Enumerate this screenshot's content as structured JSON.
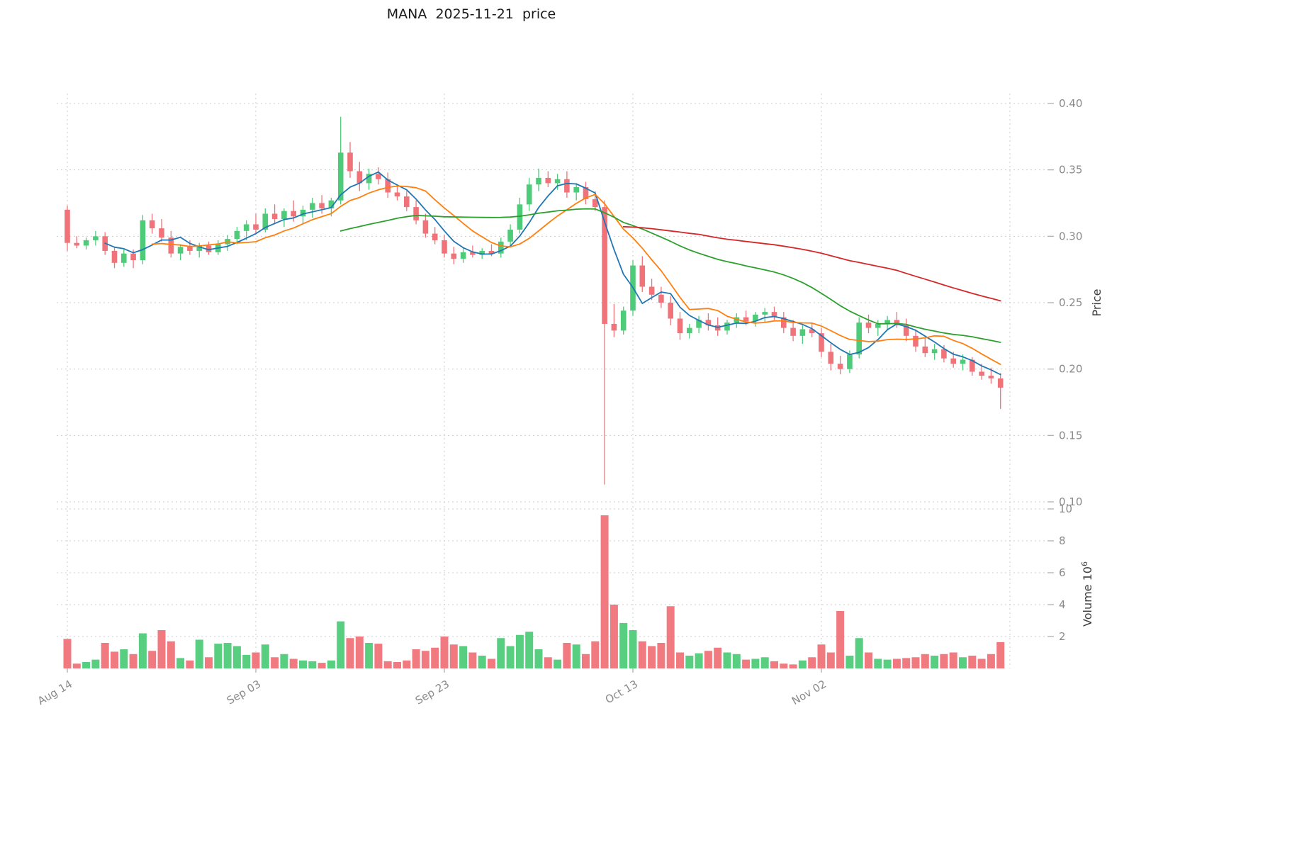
{
  "title": "MANA  2025-11-21  price",
  "axes": {
    "price_label": "Price",
    "volume_label": "Volume",
    "volume_unit_base": "10",
    "volume_unit_exp": "6"
  },
  "chart_data": {
    "type": "candlestick",
    "symbol": "MANA",
    "as_of_date_in_title": "2025-11-21",
    "grid": true,
    "x_tick_labels": [
      "Aug 14",
      "Sep 03",
      "Sep 23",
      "Oct 13",
      "Nov 02"
    ],
    "x_tick_indices": [
      0,
      20,
      40,
      60,
      80
    ],
    "price_ticks": [
      0.4,
      0.35,
      0.3,
      0.25,
      0.2,
      0.15,
      0.1
    ],
    "volume_ticks": [
      10,
      8,
      6,
      4,
      2
    ],
    "price_axis_range": [
      0.1,
      0.4
    ],
    "volume_axis_range": [
      0,
      10
    ],
    "volume_unit": 1000000,
    "moving_average_windows": [
      5,
      10,
      30,
      60
    ],
    "colors": {
      "up": "#4ecb79",
      "down": "#f0737a",
      "ma": [
        "#1f77b4",
        "#ff7f0e",
        "#2ca02c",
        "#d62728"
      ],
      "grid": "#cccccc",
      "tick_text": "#8a8a8a",
      "axis_label_text": "#3c3c3c"
    },
    "fields": [
      "open",
      "high",
      "low",
      "close",
      "volume_millions"
    ],
    "dates": [
      "2025-08-14",
      "2025-08-15",
      "2025-08-16",
      "2025-08-17",
      "2025-08-18",
      "2025-08-19",
      "2025-08-20",
      "2025-08-21",
      "2025-08-22",
      "2025-08-23",
      "2025-08-24",
      "2025-08-25",
      "2025-08-26",
      "2025-08-27",
      "2025-08-28",
      "2025-08-29",
      "2025-08-30",
      "2025-08-31",
      "2025-09-01",
      "2025-09-02",
      "2025-09-03",
      "2025-09-04",
      "2025-09-05",
      "2025-09-06",
      "2025-09-07",
      "2025-09-08",
      "2025-09-09",
      "2025-09-10",
      "2025-09-11",
      "2025-09-12",
      "2025-09-13",
      "2025-09-14",
      "2025-09-15",
      "2025-09-16",
      "2025-09-17",
      "2025-09-18",
      "2025-09-19",
      "2025-09-20",
      "2025-09-21",
      "2025-09-22",
      "2025-09-23",
      "2025-09-24",
      "2025-09-25",
      "2025-09-26",
      "2025-09-27",
      "2025-09-28",
      "2025-09-29",
      "2025-09-30",
      "2025-10-01",
      "2025-10-02",
      "2025-10-03",
      "2025-10-04",
      "2025-10-05",
      "2025-10-06",
      "2025-10-07",
      "2025-10-08",
      "2025-10-09",
      "2025-10-10",
      "2025-10-11",
      "2025-10-12",
      "2025-10-13",
      "2025-10-14",
      "2025-10-15",
      "2025-10-16",
      "2025-10-17",
      "2025-10-18",
      "2025-10-19",
      "2025-10-20",
      "2025-10-21",
      "2025-10-22",
      "2025-10-23",
      "2025-10-24",
      "2025-10-25",
      "2025-10-26",
      "2025-10-27",
      "2025-10-28",
      "2025-10-29",
      "2025-10-30",
      "2025-10-31",
      "2025-11-01",
      "2025-11-02",
      "2025-11-03",
      "2025-11-04",
      "2025-11-05",
      "2025-11-06",
      "2025-11-07",
      "2025-11-08",
      "2025-11-09",
      "2025-11-10",
      "2025-11-11",
      "2025-11-12",
      "2025-11-13",
      "2025-11-14",
      "2025-11-15",
      "2025-11-16",
      "2025-11-17",
      "2025-11-18",
      "2025-11-19",
      "2025-11-20",
      "2025-11-21"
    ],
    "candles": [
      [
        0.32,
        0.323,
        0.289,
        0.295,
        1.85
      ],
      [
        0.295,
        0.3,
        0.291,
        0.293,
        0.3
      ],
      [
        0.293,
        0.299,
        0.29,
        0.297,
        0.4
      ],
      [
        0.297,
        0.304,
        0.293,
        0.3,
        0.55
      ],
      [
        0.3,
        0.303,
        0.286,
        0.289,
        1.6
      ],
      [
        0.289,
        0.292,
        0.276,
        0.28,
        1.05
      ],
      [
        0.28,
        0.29,
        0.277,
        0.287,
        1.2
      ],
      [
        0.287,
        0.29,
        0.276,
        0.282,
        0.9
      ],
      [
        0.282,
        0.316,
        0.279,
        0.312,
        2.2
      ],
      [
        0.312,
        0.317,
        0.302,
        0.306,
        1.1
      ],
      [
        0.306,
        0.313,
        0.296,
        0.299,
        2.4
      ],
      [
        0.299,
        0.304,
        0.284,
        0.287,
        1.7
      ],
      [
        0.287,
        0.294,
        0.282,
        0.292,
        0.65
      ],
      [
        0.292,
        0.297,
        0.286,
        0.289,
        0.5
      ],
      [
        0.289,
        0.295,
        0.284,
        0.293,
        1.8
      ],
      [
        0.293,
        0.296,
        0.286,
        0.288,
        0.7
      ],
      [
        0.288,
        0.297,
        0.286,
        0.294,
        1.55
      ],
      [
        0.294,
        0.301,
        0.289,
        0.298,
        1.6
      ],
      [
        0.298,
        0.307,
        0.294,
        0.304,
        1.4
      ],
      [
        0.304,
        0.312,
        0.297,
        0.309,
        0.85
      ],
      [
        0.309,
        0.317,
        0.302,
        0.305,
        1.0
      ],
      [
        0.305,
        0.321,
        0.303,
        0.317,
        1.5
      ],
      [
        0.317,
        0.324,
        0.309,
        0.313,
        0.7
      ],
      [
        0.313,
        0.321,
        0.307,
        0.319,
        0.9
      ],
      [
        0.319,
        0.327,
        0.311,
        0.315,
        0.6
      ],
      [
        0.315,
        0.323,
        0.309,
        0.32,
        0.5
      ],
      [
        0.32,
        0.329,
        0.314,
        0.325,
        0.45
      ],
      [
        0.325,
        0.331,
        0.317,
        0.321,
        0.35
      ],
      [
        0.321,
        0.329,
        0.315,
        0.327,
        0.5
      ],
      [
        0.327,
        0.39,
        0.324,
        0.363,
        2.95
      ],
      [
        0.363,
        0.371,
        0.344,
        0.349,
        1.9
      ],
      [
        0.349,
        0.356,
        0.334,
        0.34,
        2.0
      ],
      [
        0.34,
        0.351,
        0.335,
        0.347,
        1.6
      ],
      [
        0.347,
        0.352,
        0.339,
        0.343,
        1.55
      ],
      [
        0.343,
        0.348,
        0.329,
        0.333,
        0.45
      ],
      [
        0.333,
        0.338,
        0.327,
        0.33,
        0.4
      ],
      [
        0.33,
        0.334,
        0.319,
        0.322,
        0.5
      ],
      [
        0.322,
        0.327,
        0.309,
        0.312,
        1.2
      ],
      [
        0.312,
        0.317,
        0.299,
        0.302,
        1.1
      ],
      [
        0.302,
        0.307,
        0.294,
        0.297,
        1.3
      ],
      [
        0.297,
        0.301,
        0.284,
        0.287,
        2.0
      ],
      [
        0.287,
        0.292,
        0.279,
        0.283,
        1.5
      ],
      [
        0.283,
        0.291,
        0.28,
        0.288,
        1.4
      ],
      [
        0.288,
        0.293,
        0.284,
        0.286,
        1.0
      ],
      [
        0.286,
        0.291,
        0.283,
        0.289,
        0.8
      ],
      [
        0.289,
        0.294,
        0.285,
        0.287,
        0.6
      ],
      [
        0.287,
        0.299,
        0.284,
        0.296,
        1.9
      ],
      [
        0.296,
        0.309,
        0.292,
        0.305,
        1.4
      ],
      [
        0.305,
        0.329,
        0.302,
        0.324,
        2.1
      ],
      [
        0.324,
        0.344,
        0.319,
        0.339,
        2.3
      ],
      [
        0.339,
        0.351,
        0.334,
        0.344,
        1.2
      ],
      [
        0.344,
        0.349,
        0.337,
        0.34,
        0.7
      ],
      [
        0.34,
        0.347,
        0.335,
        0.343,
        0.55
      ],
      [
        0.343,
        0.349,
        0.329,
        0.333,
        1.6
      ],
      [
        0.333,
        0.34,
        0.327,
        0.337,
        1.5
      ],
      [
        0.337,
        0.341,
        0.324,
        0.328,
        0.9
      ],
      [
        0.328,
        0.334,
        0.319,
        0.322,
        1.7
      ],
      [
        0.322,
        0.327,
        0.113,
        0.234,
        9.6
      ],
      [
        0.234,
        0.249,
        0.224,
        0.229,
        4.0
      ],
      [
        0.229,
        0.247,
        0.226,
        0.244,
        2.85
      ],
      [
        0.244,
        0.282,
        0.24,
        0.278,
        2.4
      ],
      [
        0.278,
        0.285,
        0.258,
        0.262,
        1.7
      ],
      [
        0.262,
        0.268,
        0.252,
        0.256,
        1.4
      ],
      [
        0.256,
        0.262,
        0.246,
        0.25,
        1.6
      ],
      [
        0.25,
        0.255,
        0.233,
        0.238,
        3.9
      ],
      [
        0.238,
        0.243,
        0.222,
        0.227,
        1.0
      ],
      [
        0.227,
        0.234,
        0.223,
        0.231,
        0.8
      ],
      [
        0.231,
        0.24,
        0.227,
        0.237,
        0.95
      ],
      [
        0.237,
        0.242,
        0.229,
        0.233,
        1.1
      ],
      [
        0.233,
        0.239,
        0.225,
        0.229,
        1.3
      ],
      [
        0.229,
        0.237,
        0.226,
        0.235,
        1.0
      ],
      [
        0.235,
        0.242,
        0.231,
        0.239,
        0.9
      ],
      [
        0.239,
        0.244,
        0.233,
        0.236,
        0.55
      ],
      [
        0.236,
        0.243,
        0.232,
        0.241,
        0.6
      ],
      [
        0.241,
        0.246,
        0.235,
        0.243,
        0.7
      ],
      [
        0.243,
        0.247,
        0.237,
        0.239,
        0.45
      ],
      [
        0.239,
        0.243,
        0.227,
        0.231,
        0.3
      ],
      [
        0.231,
        0.237,
        0.221,
        0.225,
        0.25
      ],
      [
        0.225,
        0.233,
        0.219,
        0.23,
        0.5
      ],
      [
        0.23,
        0.235,
        0.224,
        0.227,
        0.7
      ],
      [
        0.227,
        0.231,
        0.209,
        0.213,
        1.5
      ],
      [
        0.213,
        0.219,
        0.199,
        0.204,
        1.0
      ],
      [
        0.204,
        0.21,
        0.196,
        0.2,
        3.6
      ],
      [
        0.2,
        0.214,
        0.197,
        0.211,
        0.8
      ],
      [
        0.211,
        0.239,
        0.208,
        0.235,
        1.9
      ],
      [
        0.235,
        0.241,
        0.227,
        0.231,
        1.0
      ],
      [
        0.231,
        0.237,
        0.225,
        0.234,
        0.6
      ],
      [
        0.234,
        0.24,
        0.229,
        0.237,
        0.55
      ],
      [
        0.237,
        0.243,
        0.231,
        0.233,
        0.6
      ],
      [
        0.233,
        0.238,
        0.221,
        0.225,
        0.65
      ],
      [
        0.225,
        0.23,
        0.213,
        0.217,
        0.7
      ],
      [
        0.217,
        0.223,
        0.209,
        0.212,
        0.9
      ],
      [
        0.212,
        0.219,
        0.207,
        0.215,
        0.8
      ],
      [
        0.215,
        0.218,
        0.205,
        0.208,
        0.9
      ],
      [
        0.208,
        0.213,
        0.201,
        0.204,
        1.0
      ],
      [
        0.204,
        0.211,
        0.199,
        0.207,
        0.7
      ],
      [
        0.207,
        0.209,
        0.195,
        0.198,
        0.8
      ],
      [
        0.198,
        0.204,
        0.192,
        0.195,
        0.6
      ],
      [
        0.195,
        0.201,
        0.189,
        0.193,
        0.9
      ],
      [
        0.193,
        0.197,
        0.17,
        0.186,
        1.65
      ]
    ]
  }
}
